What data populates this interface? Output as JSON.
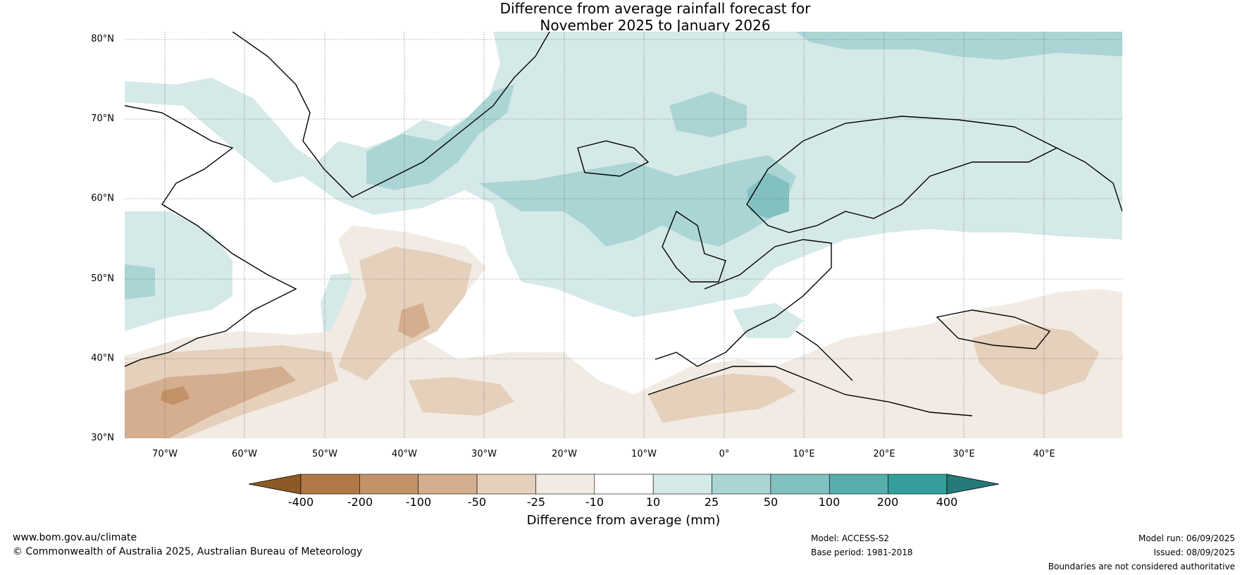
{
  "title": {
    "line1": "Difference from average rainfall forecast for",
    "line2": "November 2025 to January 2026"
  },
  "lat_labels": [
    "80°N",
    "70°N",
    "60°N",
    "50°N",
    "40°N",
    "30°N"
  ],
  "lon_labels": [
    "70°W",
    "60°W",
    "50°W",
    "40°W",
    "30°W",
    "20°W",
    "10°W",
    "0°",
    "10°E",
    "20°E",
    "30°E",
    "40°E"
  ],
  "colorbar": {
    "ticks": [
      "-400",
      "-200",
      "-100",
      "-50",
      "-25",
      "-10",
      "10",
      "25",
      "50",
      "100",
      "200",
      "400"
    ],
    "colors": [
      "#8c5a26",
      "#b07845",
      "#c39269",
      "#d4ae8e",
      "#e5d0bc",
      "#f1ebe3",
      "#ffffff",
      "#d5e9e8",
      "#abd5d5",
      "#82c1c0",
      "#57aeac",
      "#359d9b",
      "#247b79"
    ],
    "label": "Difference from average (mm)"
  },
  "footer": {
    "website": "www.bom.gov.au/climate",
    "copyright": "© Commonwealth of Australia 2025, Australian Bureau of Meteorology",
    "model": "Model: ACCESS-S2",
    "base_period": "Base period: 1981-2018",
    "model_run": "Model run: 06/09/2025",
    "issued": "Issued: 08/09/2025",
    "disclaimer": "Boundaries are not considered authoritative"
  }
}
